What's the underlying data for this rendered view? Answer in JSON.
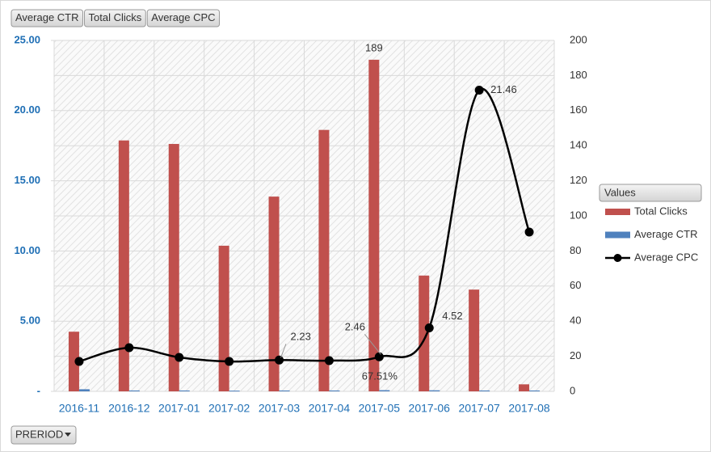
{
  "chart_data": {
    "type": "combo",
    "field_buttons": [
      "Average CTR",
      "Total Clicks",
      "Average CPC"
    ],
    "legend_title": "Values",
    "axis_field_button": "PRERIOD",
    "categories": [
      "2016-11",
      "2016-12",
      "2017-01",
      "2017-02",
      "2017-03",
      "2017-04",
      "2017-05",
      "2017-06",
      "2017-07",
      "2017-08"
    ],
    "ylim": [
      0,
      25
    ],
    "yticks": [
      {
        "value": 0,
        "label": "-"
      },
      {
        "value": 5,
        "label": "5.00"
      },
      {
        "value": 10,
        "label": "10.00"
      },
      {
        "value": 15,
        "label": "15.00"
      },
      {
        "value": 20,
        "label": "20.00"
      },
      {
        "value": 25,
        "label": "25.00"
      }
    ],
    "y2lim": [
      0,
      200
    ],
    "y2ticks": [
      0,
      20,
      40,
      60,
      80,
      100,
      120,
      140,
      160,
      180,
      200
    ],
    "grid": true,
    "legend": "right",
    "series": [
      {
        "name": "Total Clicks",
        "type": "bar",
        "axis": "y2",
        "color": "#c0504d",
        "values": [
          34,
          143,
          141,
          83,
          111,
          149,
          189,
          66,
          58,
          4
        ],
        "value_labels": [
          null,
          null,
          null,
          null,
          null,
          null,
          "189",
          null,
          null,
          null
        ]
      },
      {
        "name": "Average CTR",
        "type": "bar",
        "axis": "y2",
        "color": "#4f81bd",
        "values": [
          1.2,
          0.5,
          0.5,
          0.4,
          0.5,
          0.5,
          0.6751,
          0.6,
          0.5,
          0.5
        ],
        "value_labels": [
          null,
          null,
          null,
          null,
          null,
          null,
          "67.51%",
          null,
          null,
          null
        ]
      },
      {
        "name": "Average CPC",
        "type": "line",
        "axis": "y",
        "color": "#000000",
        "values": [
          2.13,
          3.11,
          2.42,
          2.13,
          2.23,
          2.19,
          2.46,
          4.52,
          21.46,
          11.35
        ],
        "value_labels": [
          null,
          null,
          null,
          null,
          "2.23",
          null,
          "2.46",
          "4.52",
          "21.46",
          null
        ]
      }
    ]
  }
}
